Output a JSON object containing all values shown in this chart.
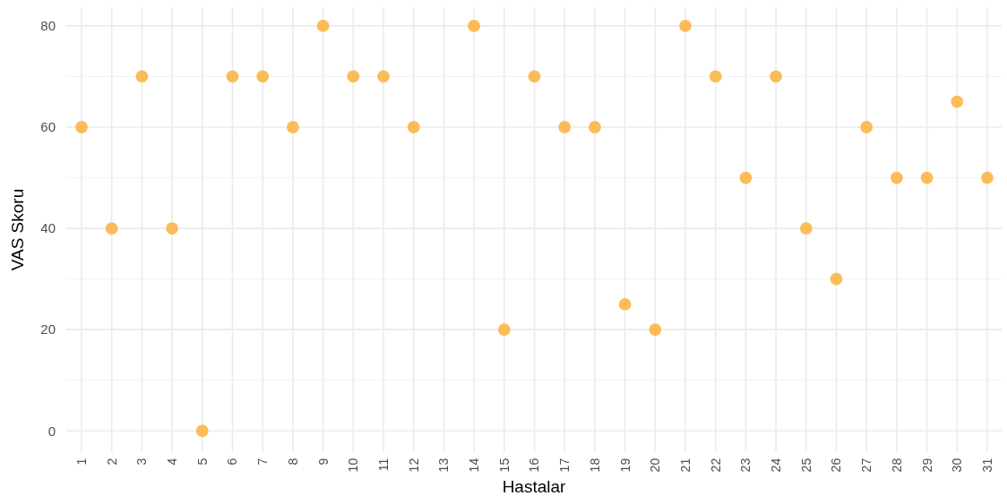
{
  "chart_data": {
    "type": "scatter",
    "xlabel": "Hastalar",
    "ylabel": "VAS Skoru",
    "categories": [
      "1",
      "2",
      "3",
      "4",
      "5",
      "6",
      "7",
      "8",
      "9",
      "10",
      "11",
      "12",
      "13",
      "14",
      "15",
      "16",
      "17",
      "18",
      "19",
      "20",
      "21",
      "22",
      "23",
      "24",
      "25",
      "26",
      "27",
      "28",
      "29",
      "30",
      "31"
    ],
    "series": [
      {
        "color": "#fbb13c",
        "values": [
          60,
          40,
          70,
          40,
          0,
          70,
          70,
          60,
          80,
          70,
          70,
          60,
          null,
          80,
          20,
          70,
          60,
          60,
          25,
          20,
          80,
          70,
          50,
          70,
          40,
          30,
          60,
          50,
          50,
          65,
          50
        ]
      }
    ],
    "ylim": [
      -4.2,
      83.7
    ],
    "yticks": [
      0,
      {
        "value": 10,
        "label": null
      },
      20,
      {
        "value": 30,
        "label": null
      },
      40,
      {
        "value": 50,
        "label": null
      },
      60,
      {
        "value": 70,
        "label": null
      },
      80
    ],
    "grid": true,
    "marker": "circle"
  }
}
